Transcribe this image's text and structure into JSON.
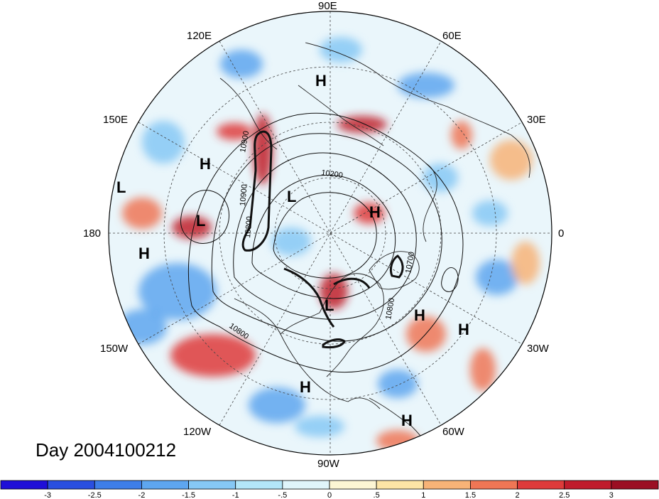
{
  "date_label": "Day 2004100212",
  "longitude_labels": {
    "e90": "90E",
    "e60": "60E",
    "e30": "30E",
    "zero": "0",
    "w30": "30W",
    "w60": "60W",
    "w90": "90W",
    "w120": "120W",
    "w150": "150W",
    "lon180": "180",
    "e150": "150E",
    "e120": "120E"
  },
  "pressure_centers": [
    {
      "type": "H",
      "id": "h-east-siberia-north"
    },
    {
      "type": "H",
      "id": "h-pacific-west"
    },
    {
      "type": "L",
      "id": "l-pacific-far"
    },
    {
      "type": "L",
      "id": "l-pacific-cyclone"
    },
    {
      "type": "H",
      "id": "h-pacific-south"
    },
    {
      "type": "L",
      "id": "l-arctic"
    },
    {
      "type": "H",
      "id": "h-scandinavia"
    },
    {
      "type": "L",
      "id": "l-hudson"
    },
    {
      "type": "H",
      "id": "h-atlantic-1"
    },
    {
      "type": "H",
      "id": "h-atlantic-2"
    },
    {
      "type": "H",
      "id": "h-gulf"
    },
    {
      "type": "H",
      "id": "h-south-america"
    }
  ],
  "contour_labels": {
    "c1": "10900",
    "c2": "10900",
    "c3": "10800",
    "c4": "10200",
    "c5": "10700",
    "c6": "10800",
    "c7": "10800"
  },
  "colorbar": {
    "ticks": [
      "-3",
      "-2.5",
      "-2",
      "-1.5",
      "-1",
      "-.5",
      "0",
      ".5",
      "1",
      "1.5",
      "2",
      "2.5",
      "3"
    ],
    "colors": [
      "#1f0fd8",
      "#2a4fe0",
      "#3e7ee8",
      "#5ea6ef",
      "#86c8f5",
      "#b3e6f8",
      "#e0f5fb",
      "#fdf6d4",
      "#fde5a6",
      "#f7b377",
      "#ef7655",
      "#de3b3b",
      "#c01c2c",
      "#9b0f23"
    ]
  }
}
